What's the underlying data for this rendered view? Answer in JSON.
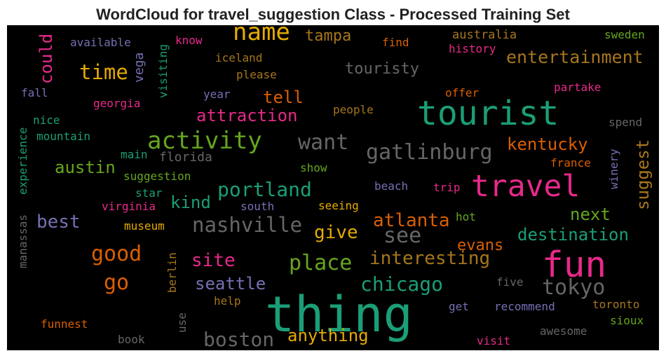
{
  "chart_data": {
    "type": "wordcloud",
    "title": "WordCloud for travel_suggestion Class - Processed Training Set",
    "background": "#000000",
    "words": [
      {
        "text": "name",
        "color": "#e6ab02"
      },
      {
        "text": "tampa",
        "color": "#a6761d"
      },
      {
        "text": "australia",
        "color": "#a6761d"
      },
      {
        "text": "sweden",
        "color": "#66a61e"
      },
      {
        "text": "available",
        "color": "#7570b3"
      },
      {
        "text": "know",
        "color": "#e7298a"
      },
      {
        "text": "find",
        "color": "#d95f02"
      },
      {
        "text": "history",
        "color": "#e7298a"
      },
      {
        "text": "could",
        "color": "#e7298a"
      },
      {
        "text": "vega",
        "color": "#7570b3"
      },
      {
        "text": "visiting",
        "color": "#1b9e77"
      },
      {
        "text": "iceland",
        "color": "#a6761d"
      },
      {
        "text": "entertainment",
        "color": "#a6761d"
      },
      {
        "text": "time",
        "color": "#e6ab02"
      },
      {
        "text": "touristy",
        "color": "#666666"
      },
      {
        "text": "please",
        "color": "#a6761d"
      },
      {
        "text": "fall",
        "color": "#7570b3"
      },
      {
        "text": "year",
        "color": "#7570b3"
      },
      {
        "text": "tell",
        "color": "#d95f02"
      },
      {
        "text": "offer",
        "color": "#d95f02"
      },
      {
        "text": "partake",
        "color": "#e7298a"
      },
      {
        "text": "georgia",
        "color": "#e7298a"
      },
      {
        "text": "tourist",
        "color": "#1b9e77"
      },
      {
        "text": "people",
        "color": "#a6761d"
      },
      {
        "text": "nice",
        "color": "#1b9e77"
      },
      {
        "text": "attraction",
        "color": "#e7298a"
      },
      {
        "text": "spend",
        "color": "#666666"
      },
      {
        "text": "experience",
        "color": "#1b9e77"
      },
      {
        "text": "mountain",
        "color": "#1b9e77"
      },
      {
        "text": "activity",
        "color": "#66a61e"
      },
      {
        "text": "want",
        "color": "#666666"
      },
      {
        "text": "gatlinburg",
        "color": "#666666"
      },
      {
        "text": "kentucky",
        "color": "#d95f02"
      },
      {
        "text": "suggest",
        "color": "#a6761d"
      },
      {
        "text": "main",
        "color": "#1b9e77"
      },
      {
        "text": "florida",
        "color": "#666666"
      },
      {
        "text": "winery",
        "color": "#7570b3"
      },
      {
        "text": "austin",
        "color": "#66a61e"
      },
      {
        "text": "show",
        "color": "#66a61e"
      },
      {
        "text": "france",
        "color": "#d95f02"
      },
      {
        "text": "suggestion",
        "color": "#66a61e"
      },
      {
        "text": "portland",
        "color": "#1b9e77"
      },
      {
        "text": "travel",
        "color": "#e7298a"
      },
      {
        "text": "star",
        "color": "#1b9e77"
      },
      {
        "text": "kind",
        "color": "#1b9e77"
      },
      {
        "text": "beach",
        "color": "#7570b3"
      },
      {
        "text": "trip",
        "color": "#e7298a"
      },
      {
        "text": "virginia",
        "color": "#e7298a"
      },
      {
        "text": "south",
        "color": "#7570b3"
      },
      {
        "text": "seeing",
        "color": "#e6ab02"
      },
      {
        "text": "next",
        "color": "#66a61e"
      },
      {
        "text": "best",
        "color": "#7570b3"
      },
      {
        "text": "atlanta",
        "color": "#d95f02"
      },
      {
        "text": "museum",
        "color": "#e6ab02"
      },
      {
        "text": "hot",
        "color": "#66a61e"
      },
      {
        "text": "nashville",
        "color": "#666666"
      },
      {
        "text": "manassas",
        "color": "#666666"
      },
      {
        "text": "give",
        "color": "#e6ab02"
      },
      {
        "text": "see",
        "color": "#666666"
      },
      {
        "text": "destination",
        "color": "#1b9e77"
      },
      {
        "text": "evans",
        "color": "#d95f02"
      },
      {
        "text": "good",
        "color": "#d95f02"
      },
      {
        "text": "berlin",
        "color": "#a6761d"
      },
      {
        "text": "site",
        "color": "#e7298a"
      },
      {
        "text": "place",
        "color": "#66a61e"
      },
      {
        "text": "interesting",
        "color": "#a6761d"
      },
      {
        "text": "fun",
        "color": "#e7298a"
      },
      {
        "text": "go",
        "color": "#d95f02"
      },
      {
        "text": "seattle",
        "color": "#7570b3"
      },
      {
        "text": "chicago",
        "color": "#1b9e77"
      },
      {
        "text": "five",
        "color": "#666666"
      },
      {
        "text": "tokyo",
        "color": "#666666"
      },
      {
        "text": "help",
        "color": "#a6761d"
      },
      {
        "text": "thing",
        "color": "#1b9e77"
      },
      {
        "text": "get",
        "color": "#7570b3"
      },
      {
        "text": "recommend",
        "color": "#7570b3"
      },
      {
        "text": "toronto",
        "color": "#a6761d"
      },
      {
        "text": "use",
        "color": "#666666"
      },
      {
        "text": "funnest",
        "color": "#d95f02"
      },
      {
        "text": "sioux",
        "color": "#66a61e"
      },
      {
        "text": "awesome",
        "color": "#666666"
      },
      {
        "text": "anything",
        "color": "#e6ab02"
      },
      {
        "text": "boston",
        "color": "#666666"
      },
      {
        "text": "book",
        "color": "#666666"
      },
      {
        "text": "visit",
        "color": "#e7298a"
      }
    ]
  }
}
